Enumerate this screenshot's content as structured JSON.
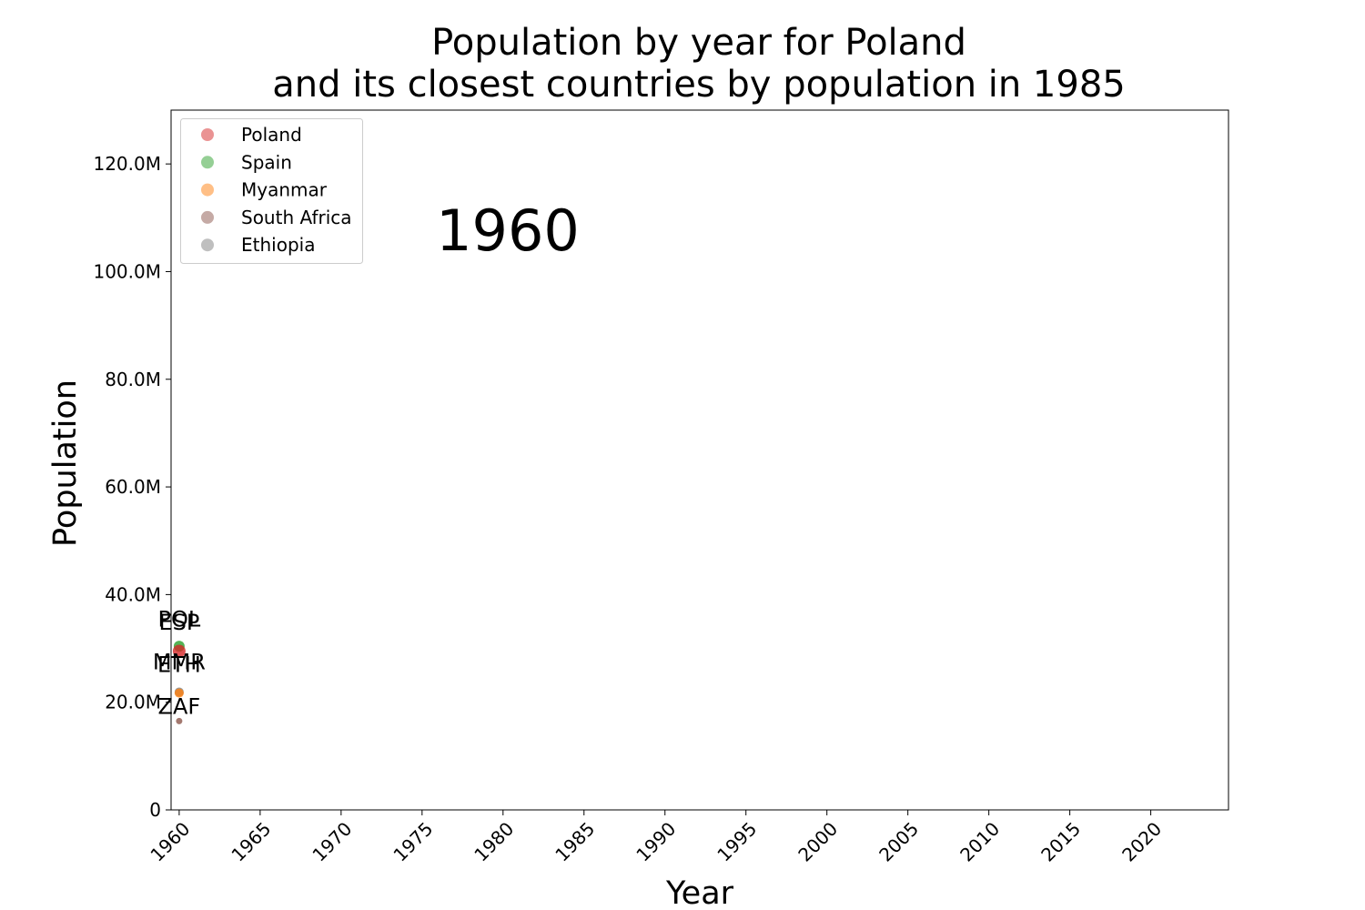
{
  "chart_data": {
    "type": "scatter",
    "title_lines": [
      "Population by year for Poland",
      "and its closest countries by population in 1985"
    ],
    "xlabel": "Year",
    "ylabel": "Population",
    "current_year": "1960",
    "xlim": [
      1959.5,
      2024.8
    ],
    "ylim": [
      0,
      130000000
    ],
    "x_ticks": [
      1960,
      1965,
      1970,
      1975,
      1980,
      1985,
      1990,
      1995,
      2000,
      2005,
      2010,
      2015,
      2020
    ],
    "x_tick_labels": [
      "1960",
      "1965",
      "1970",
      "1975",
      "1980",
      "1985",
      "1990",
      "1995",
      "2000",
      "2005",
      "2010",
      "2015",
      "2020"
    ],
    "y_ticks": [
      0,
      20000000,
      40000000,
      60000000,
      80000000,
      100000000,
      120000000
    ],
    "y_tick_labels": [
      "0",
      "20.0M",
      "40.0M",
      "60.0M",
      "80.0M",
      "100.0M",
      "120.0M"
    ],
    "legend_position": "upper-left",
    "grid": false,
    "series": [
      {
        "name": "Poland",
        "code": "POL",
        "color": "#d62728",
        "x": [
          1960
        ],
        "y": [
          29500000
        ]
      },
      {
        "name": "Spain",
        "code": "ESP",
        "color": "#2ca02c",
        "x": [
          1960
        ],
        "y": [
          30400000
        ]
      },
      {
        "name": "Myanmar",
        "code": "MMR",
        "color": "#ff7f0e",
        "x": [
          1960
        ],
        "y": [
          21700000
        ]
      },
      {
        "name": "South Africa",
        "code": "ZAF",
        "color": "#8c564b",
        "x": [
          1960
        ],
        "y": [
          16500000
        ]
      },
      {
        "name": "Ethiopia",
        "code": "ETH",
        "color": "#7f7f7f",
        "x": [
          1960
        ],
        "y": [
          21900000
        ]
      }
    ]
  }
}
